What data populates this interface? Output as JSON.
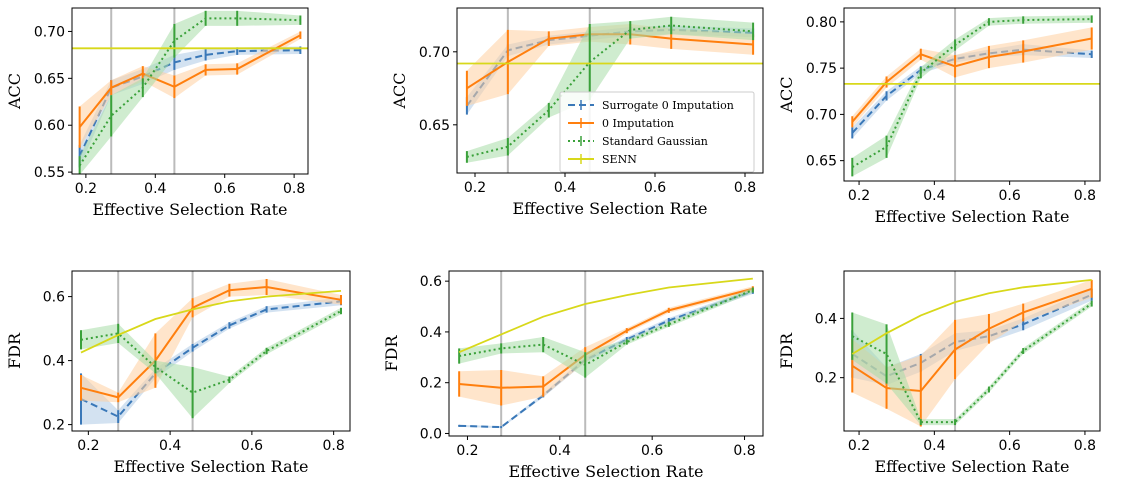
{
  "colors": {
    "surrogate": "#3a78b8",
    "zero": "#ff7f0e",
    "gaussian": "#3aa13a",
    "senn": "#d8d81a",
    "vline": "#bbbbbb",
    "surrogate_band": "#aecbe6",
    "zero_band": "#ffcfa0",
    "gaussian_band": "#a8dca8"
  },
  "legend": {
    "items": [
      {
        "key": "surrogate",
        "label": "Surrogate 0 Imputation"
      },
      {
        "key": "zero",
        "label": "0 Imputation"
      },
      {
        "key": "gaussian",
        "label": "Standard Gaussian"
      },
      {
        "key": "senn",
        "label": "SENN"
      }
    ]
  },
  "chart_data": [
    {
      "type": "line",
      "xlabel": "Effective Selection Rate",
      "ylabel": "ACC",
      "xlim": [
        0.16,
        0.84
      ],
      "ylim": [
        0.548,
        0.725
      ],
      "xticks": [
        "0.2",
        "0.4",
        "0.6",
        "0.8"
      ],
      "xtick_values": [
        0.2,
        0.4,
        0.6,
        0.8
      ],
      "yticks": [
        "0.55",
        "0.60",
        "0.65",
        "0.70"
      ],
      "ytick_values": [
        0.55,
        0.6,
        0.65,
        0.7
      ],
      "vlines": [
        0.273,
        0.455
      ],
      "x": [
        0.182,
        0.273,
        0.364,
        0.455,
        0.545,
        0.636,
        0.818
      ],
      "series": [
        {
          "key": "surrogate",
          "name": "Surrogate 0 Imputation",
          "values": [
            0.567,
            0.64,
            0.652,
            0.667,
            0.675,
            0.679,
            0.68
          ],
          "err": [
            0.012,
            0.008,
            0.008,
            0.008,
            0.006,
            0.004,
            0.004
          ]
        },
        {
          "key": "zero",
          "name": "0 Imputation",
          "values": [
            0.598,
            0.64,
            0.655,
            0.641,
            0.659,
            0.66,
            0.696
          ],
          "err": [
            0.022,
            0.008,
            0.008,
            0.012,
            0.006,
            0.006,
            0.004
          ]
        },
        {
          "key": "gaussian",
          "name": "Standard Gaussian",
          "values": [
            0.557,
            0.61,
            0.64,
            0.69,
            0.714,
            0.714,
            0.712
          ],
          "err": [
            0.01,
            0.022,
            0.01,
            0.018,
            0.008,
            0.008,
            0.005
          ]
        },
        {
          "key": "senn",
          "name": "SENN",
          "values": [
            0.682,
            0.682,
            0.682,
            0.682,
            0.682,
            0.682,
            0.682
          ],
          "err": [
            0,
            0,
            0,
            0,
            0,
            0,
            0
          ],
          "flat": true
        }
      ]
    },
    {
      "type": "line",
      "xlabel": "Effective Selection Rate",
      "ylabel": "ACC",
      "xlim": [
        0.16,
        0.84
      ],
      "ylim": [
        0.617,
        0.73
      ],
      "xticks": [
        "0.2",
        "0.4",
        "0.6",
        "0.8"
      ],
      "xtick_values": [
        0.2,
        0.4,
        0.6,
        0.8
      ],
      "yticks": [
        "0.65",
        "0.70"
      ],
      "ytick_values": [
        0.65,
        0.7
      ],
      "vlines": [
        0.273,
        0.455
      ],
      "x": [
        0.182,
        0.273,
        0.364,
        0.455,
        0.545,
        0.636,
        0.818
      ],
      "series": [
        {
          "key": "surrogate",
          "name": "Surrogate 0 Imputation",
          "values": [
            0.663,
            0.701,
            0.708,
            0.711,
            0.714,
            0.715,
            0.713
          ],
          "err": [
            0.006,
            0.004,
            0.003,
            0.003,
            0.003,
            0.003,
            0.003
          ]
        },
        {
          "key": "zero",
          "name": "0 Imputation",
          "values": [
            0.675,
            0.693,
            0.709,
            0.712,
            0.712,
            0.709,
            0.705
          ],
          "err": [
            0.012,
            0.022,
            0.005,
            0.005,
            0.007,
            0.007,
            0.007
          ]
        },
        {
          "key": "gaussian",
          "name": "Standard Gaussian",
          "values": [
            0.628,
            0.635,
            0.66,
            0.693,
            0.715,
            0.718,
            0.714
          ],
          "err": [
            0.004,
            0.006,
            0.005,
            0.026,
            0.006,
            0.006,
            0.006
          ]
        },
        {
          "key": "senn",
          "name": "SENN",
          "values": [
            0.692,
            0.692,
            0.692,
            0.692,
            0.692,
            0.692,
            0.692
          ],
          "err": [
            0,
            0,
            0,
            0,
            0,
            0,
            0
          ],
          "flat": true
        }
      ]
    },
    {
      "type": "line",
      "xlabel": "Effective Selection Rate",
      "ylabel": "ACC",
      "xlim": [
        0.16,
        0.84
      ],
      "ylim": [
        0.628,
        0.815
      ],
      "xticks": [
        "0.2",
        "0.4",
        "0.6",
        "0.8"
      ],
      "xtick_values": [
        0.2,
        0.4,
        0.6,
        0.8
      ],
      "yticks": [
        "0.65",
        "0.70",
        "0.75",
        "0.80"
      ],
      "ytick_values": [
        0.65,
        0.7,
        0.75,
        0.8
      ],
      "vlines": [
        0.455
      ],
      "x": [
        0.182,
        0.273,
        0.364,
        0.455,
        0.545,
        0.636,
        0.818
      ],
      "series": [
        {
          "key": "surrogate",
          "name": "Surrogate 0 Imputation",
          "values": [
            0.68,
            0.72,
            0.748,
            0.76,
            0.766,
            0.77,
            0.765
          ],
          "err": [
            0.006,
            0.005,
            0.004,
            0.004,
            0.004,
            0.006,
            0.004
          ]
        },
        {
          "key": "zero",
          "name": "0 Imputation",
          "values": [
            0.692,
            0.735,
            0.765,
            0.752,
            0.762,
            0.768,
            0.782
          ],
          "err": [
            0.006,
            0.006,
            0.006,
            0.012,
            0.012,
            0.012,
            0.012
          ]
        },
        {
          "key": "gaussian",
          "name": "Standard Gaussian",
          "values": [
            0.643,
            0.665,
            0.745,
            0.775,
            0.8,
            0.802,
            0.803
          ],
          "err": [
            0.01,
            0.012,
            0.006,
            0.006,
            0.004,
            0.004,
            0.004
          ]
        },
        {
          "key": "senn",
          "name": "SENN",
          "values": [
            0.733,
            0.733,
            0.733,
            0.733,
            0.733,
            0.733,
            0.733
          ],
          "err": [
            0,
            0,
            0,
            0,
            0,
            0,
            0
          ],
          "flat": true
        }
      ]
    },
    {
      "type": "line",
      "xlabel": "Effective Selection Rate",
      "ylabel": "FDR",
      "xlim": [
        0.16,
        0.84
      ],
      "ylim": [
        0.18,
        0.68
      ],
      "xticks": [
        "0.2",
        "0.4",
        "0.6",
        "0.8"
      ],
      "xtick_values": [
        0.2,
        0.4,
        0.6,
        0.8
      ],
      "yticks": [
        "0.2",
        "0.4",
        "0.6"
      ],
      "ytick_values": [
        0.2,
        0.4,
        0.6
      ],
      "vlines": [
        0.273,
        0.455
      ],
      "x": [
        0.182,
        0.273,
        0.364,
        0.455,
        0.545,
        0.636,
        0.818
      ],
      "series": [
        {
          "key": "surrogate",
          "name": "Surrogate 0 Imputation",
          "values": [
            0.28,
            0.225,
            0.36,
            0.44,
            0.51,
            0.56,
            0.585
          ],
          "err": [
            0.08,
            0.02,
            0.015,
            0.012,
            0.01,
            0.01,
            0.012
          ]
        },
        {
          "key": "zero",
          "name": "0 Imputation",
          "values": [
            0.315,
            0.285,
            0.4,
            0.565,
            0.62,
            0.63,
            0.59
          ],
          "err": [
            0.04,
            0.015,
            0.085,
            0.03,
            0.02,
            0.025,
            0.015
          ]
        },
        {
          "key": "gaussian",
          "name": "Standard Gaussian",
          "values": [
            0.465,
            0.485,
            0.38,
            0.3,
            0.34,
            0.43,
            0.555
          ],
          "err": [
            0.03,
            0.03,
            0.02,
            0.08,
            0.01,
            0.01,
            0.01
          ]
        },
        {
          "key": "senn",
          "name": "SENN",
          "values": [
            0.425,
            0.48,
            0.53,
            0.56,
            0.585,
            0.6,
            0.618
          ],
          "err": [
            0,
            0,
            0,
            0,
            0,
            0,
            0
          ]
        }
      ]
    },
    {
      "type": "line",
      "xlabel": "Effective Selection Rate",
      "ylabel": "FDR",
      "xlim": [
        0.16,
        0.84
      ],
      "ylim": [
        -0.01,
        0.64
      ],
      "xticks": [
        "0.2",
        "0.4",
        "0.6",
        "0.8"
      ],
      "xtick_values": [
        0.2,
        0.4,
        0.6,
        0.8
      ],
      "yticks": [
        "0.0",
        "0.2",
        "0.4",
        "0.6"
      ],
      "ytick_values": [
        0.0,
        0.2,
        0.4,
        0.6
      ],
      "vlines": [
        0.273,
        0.455
      ],
      "x": [
        0.182,
        0.273,
        0.364,
        0.455,
        0.545,
        0.636,
        0.818
      ],
      "series": [
        {
          "key": "surrogate",
          "name": "Surrogate 0 Imputation",
          "values": [
            0.03,
            0.025,
            0.15,
            0.29,
            0.37,
            0.445,
            0.56
          ],
          "err": [
            0.004,
            0.004,
            0.008,
            0.01,
            0.01,
            0.01,
            0.01
          ]
        },
        {
          "key": "zero",
          "name": "0 Imputation",
          "values": [
            0.195,
            0.18,
            0.185,
            0.31,
            0.405,
            0.485,
            0.57
          ],
          "err": [
            0.05,
            0.07,
            0.04,
            0.03,
            0.01,
            0.01,
            0.01
          ]
        },
        {
          "key": "gaussian",
          "name": "Standard Gaussian",
          "values": [
            0.305,
            0.335,
            0.35,
            0.27,
            0.36,
            0.43,
            0.565
          ],
          "err": [
            0.03,
            0.02,
            0.03,
            0.05,
            0.01,
            0.01,
            0.01
          ]
        },
        {
          "key": "senn",
          "name": "SENN",
          "values": [
            0.32,
            0.39,
            0.46,
            0.51,
            0.545,
            0.575,
            0.61
          ],
          "err": [
            0,
            0,
            0,
            0,
            0,
            0,
            0
          ]
        }
      ]
    },
    {
      "type": "line",
      "xlabel": "Effective Selection Rate",
      "ylabel": "FDR",
      "xlim": [
        0.16,
        0.84
      ],
      "ylim": [
        0.02,
        0.56
      ],
      "xticks": [
        "0.2",
        "0.4",
        "0.6",
        "0.8"
      ],
      "xtick_values": [
        0.2,
        0.4,
        0.6,
        0.8
      ],
      "yticks": [
        "0.2",
        "0.4"
      ],
      "ytick_values": [
        0.2,
        0.4
      ],
      "vlines": [
        0.455
      ],
      "x": [
        0.182,
        0.273,
        0.364,
        0.455,
        0.545,
        0.636,
        0.818
      ],
      "series": [
        {
          "key": "surrogate",
          "name": "Surrogate 0 Imputation",
          "values": [
            0.28,
            0.205,
            0.25,
            0.32,
            0.34,
            0.38,
            0.48
          ],
          "err": [
            0.08,
            0.03,
            0.03,
            0.03,
            0.02,
            0.02,
            0.02
          ]
        },
        {
          "key": "zero",
          "name": "0 Imputation",
          "values": [
            0.24,
            0.165,
            0.155,
            0.295,
            0.365,
            0.42,
            0.5
          ],
          "err": [
            0.09,
            0.07,
            0.12,
            0.1,
            0.05,
            0.03,
            0.03
          ]
        },
        {
          "key": "gaussian",
          "name": "Standard Gaussian",
          "values": [
            0.34,
            0.28,
            0.05,
            0.05,
            0.16,
            0.29,
            0.45
          ],
          "err": [
            0.08,
            0.1,
            0.01,
            0.01,
            0.01,
            0.01,
            0.01
          ]
        },
        {
          "key": "senn",
          "name": "SENN",
          "values": [
            0.28,
            0.35,
            0.41,
            0.455,
            0.485,
            0.505,
            0.53
          ],
          "err": [
            0,
            0,
            0,
            0,
            0,
            0,
            0
          ]
        }
      ]
    }
  ]
}
